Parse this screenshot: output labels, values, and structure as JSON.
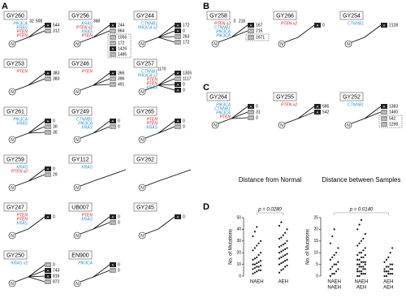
{
  "panels": [
    {
      "label": "A",
      "tiles": [
        {
          "name": "GY260",
          "notes": [
            32,
            508
          ],
          "leaves": [
            {
              "tag": "A",
              "count": 544
            },
            {
              "tag": "NA",
              "count": 312
            }
          ],
          "genes": [
            {
              "text": "PIK3CA",
              "color": "#2a8fd4"
            },
            {
              "text": "KRAS",
              "color": "#2a8fd4"
            },
            {
              "text": "PTEN",
              "color": "#e02020"
            },
            {
              "text": "PTEN",
              "color": "#e02020"
            }
          ]
        },
        {
          "name": "GY256",
          "notes": [
            368
          ],
          "leaves": [
            {
              "tag": "A",
              "count": 244
            },
            {
              "tag": "NA",
              "count": 864
            }
          ],
          "inset": [
            {
              "tag": "NA",
              "count": 1056
            },
            {
              "tag": "NA",
              "count": 172
            },
            {
              "tag": "A",
              "count": 1426
            },
            {
              "tag": "NA",
              "count": 1485
            }
          ],
          "genes": [
            {
              "text": "KRAS",
              "color": "#2a8fd4"
            },
            {
              "text": "PTEN x2",
              "color": "#e02020"
            },
            {
              "text": "KRAS",
              "color": "#2a8fd4"
            },
            {
              "text": "PTEN",
              "color": "#e02020"
            }
          ]
        },
        {
          "name": "GY244",
          "notes": [],
          "leaves": [
            {
              "tag": "A",
              "count": 172
            },
            {
              "tag": "A",
              "count": 0
            },
            {
              "tag": "NA",
              "count": 263
            },
            {
              "tag": "NA",
              "count": 172
            }
          ],
          "genes": [
            {
              "text": "CTNNB1",
              "color": "#2a8fd4"
            },
            {
              "text": "PIK3CA x2",
              "color": "#2a8fd4"
            }
          ]
        },
        {
          "name": "GY253",
          "notes": [],
          "leaves": [
            {
              "tag": "A",
              "count": 383
            },
            {
              "tag": "NA",
              "count": 383
            }
          ],
          "genes": [
            {
              "text": "PTEN",
              "color": "#e02020"
            }
          ]
        },
        {
          "name": "GY246",
          "notes": [],
          "leaves": [
            {
              "tag": "A",
              "count": 366
            },
            {
              "tag": "NA",
              "count": 396
            },
            {
              "tag": "NA",
              "count": 491
            }
          ],
          "genes": [
            {
              "text": "PTEN",
              "color": "#e02020"
            }
          ]
        },
        {
          "name": "GY257",
          "notes": [
            1170
          ],
          "leaves": [
            {
              "tag": "A",
              "count": 1305
            },
            {
              "tag": "NA",
              "count": 1117
            },
            {
              "tag": "A",
              "count": 0
            },
            {
              "tag": "A",
              "count": 0
            }
          ],
          "genes": [
            {
              "text": "CTNNB1",
              "color": "#2a8fd4"
            },
            {
              "text": "PIK3CA x2",
              "color": "#2a8fd4"
            },
            {
              "text": "PTEN",
              "color": "#e02020"
            },
            {
              "text": "PTEN",
              "color": "#e02020"
            },
            {
              "text": "KRAS",
              "color": "#2a8fd4"
            }
          ]
        },
        {
          "name": "GY261",
          "notes": [],
          "leaves": [
            {
              "tag": "A",
              "count": 0
            },
            {
              "tag": "NA",
              "count": 30
            },
            {
              "tag": "NA",
              "count": 30
            }
          ],
          "genes": [
            {
              "text": "PIK3CA",
              "color": "#2a8fd4"
            },
            {
              "text": "KRAS",
              "color": "#2a8fd4"
            }
          ]
        },
        {
          "name": "GY249",
          "notes": [],
          "leaves": [
            {
              "tag": "A",
              "count": 0
            },
            {
              "tag": "NA",
              "count": 0
            }
          ],
          "genes": [
            {
              "text": "CTNNB1",
              "color": "#2a8fd4"
            },
            {
              "text": "PIK3CA",
              "color": "#2a8fd4"
            },
            {
              "text": "KRAS",
              "color": "#2a8fd4"
            }
          ]
        },
        {
          "name": "GY265",
          "notes": [],
          "leaves": [
            {
              "tag": "A",
              "count": 0
            },
            {
              "tag": "NA",
              "count": 0
            }
          ],
          "genes": [
            {
              "text": "PTEN",
              "color": "#e02020"
            },
            {
              "text": "PTEN",
              "color": "#e02020"
            },
            {
              "text": "KRAS",
              "color": "#2a8fd4"
            }
          ]
        },
        {
          "name": "GY259",
          "notes": [],
          "leaves": [
            {
              "tag": "A",
              "count": 0
            },
            {
              "tag": "NA",
              "count": 29
            }
          ],
          "genes": [
            {
              "text": "KRAS",
              "color": "#2a8fd4"
            },
            {
              "text": "PTEN x2",
              "color": "#e02020"
            }
          ]
        },
        {
          "name": "GY112",
          "notes": [],
          "leaves": [],
          "genes": [
            {
              "text": "KRAS",
              "color": "#2a8fd4"
            }
          ]
        },
        {
          "name": "GY262",
          "notes": [],
          "leaves": [],
          "genes": []
        },
        {
          "name": "GY247",
          "notes": [],
          "leaves": [
            {
              "tag": "A",
              "count": 0
            }
          ],
          "genes": [
            {
              "text": "PTEN",
              "color": "#e02020"
            },
            {
              "text": "PTEN",
              "color": "#e02020"
            },
            {
              "text": "KRAS",
              "color": "#2a8fd4"
            }
          ]
        },
        {
          "name": "UB007",
          "notes": [],
          "leaves": [
            {
              "tag": "A",
              "count": 0
            },
            {
              "tag": "NA",
              "count": 0
            }
          ],
          "genes": [
            {
              "text": "PTEN",
              "color": "#e02020"
            },
            {
              "text": "KRAS",
              "color": "#2a8fd4"
            }
          ]
        },
        {
          "name": "GY245",
          "notes": [],
          "leaves": [
            {
              "tag": "A",
              "count": 0
            }
          ],
          "genes": []
        },
        {
          "name": "GY250",
          "notes": [],
          "leaves": [
            {
              "tag": "NA",
              "count": 0
            },
            {
              "tag": "A",
              "count": 743
            },
            {
              "tag": "A",
              "count": 816
            },
            {
              "tag": "NA",
              "count": 872
            }
          ],
          "genes": [
            {
              "text": "KRAS x2",
              "color": "#2a8fd4"
            }
          ]
        },
        {
          "name": "EN900",
          "notes": [],
          "leaves": [
            {
              "tag": "A",
              "count": 0
            },
            {
              "tag": "NA",
              "count": 0
            }
          ],
          "genes": [
            {
              "text": "PIK3CA",
              "color": "#2a8fd4"
            }
          ]
        }
      ]
    },
    {
      "label": "B",
      "tiles": [
        {
          "name": "GY258",
          "notes": [
            0,
            216
          ],
          "leaves": [
            {
              "tag": "A",
              "count": 167
            },
            {
              "tag": "NA",
              "count": 216
            }
          ],
          "inset": [
            {
              "tag": "NA",
              "count": 1671
            }
          ],
          "genes": [
            {
              "text": "PTEN x2",
              "color": "#e02020"
            },
            {
              "text": "CTNNB1",
              "color": "#2a8fd4"
            },
            {
              "text": "PIK3CA",
              "color": "#2a8fd4"
            },
            {
              "text": "PIK3CA",
              "color": "#2a8fd4"
            }
          ]
        },
        {
          "name": "GY266",
          "notes": [],
          "leaves": [
            {
              "tag": "A",
              "count": 0
            }
          ],
          "genes": [
            {
              "text": "PTEN x2",
              "color": "#e02020"
            }
          ]
        },
        {
          "name": "GY254",
          "notes": [],
          "leaves": [
            {
              "tag": "A",
              "count": 2128
            }
          ],
          "genes": [
            {
              "text": "CTNNB1",
              "color": "#2a8fd4"
            }
          ]
        }
      ]
    },
    {
      "label": "C",
      "tiles": [
        {
          "name": "GY264",
          "notes": [],
          "leaves": [
            {
              "tag": "A",
              "count": 0
            },
            {
              "tag": "NA",
              "count": 31
            },
            {
              "tag": "NA",
              "count": 0
            }
          ],
          "genes": [
            {
              "text": "PIK3CA",
              "color": "#2a8fd4"
            },
            {
              "text": "CTNNB1",
              "color": "#2a8fd4"
            },
            {
              "text": "PIK3CA",
              "color": "#2a8fd4"
            },
            {
              "text": "PTEN",
              "color": "#e02020"
            }
          ]
        },
        {
          "name": "GY255",
          "notes": [],
          "leaves": [
            {
              "tag": "A",
              "count": 585
            },
            {
              "tag": "A",
              "count": 542
            }
          ],
          "genes": [
            {
              "text": "PTEN x2",
              "color": "#e02020"
            }
          ]
        },
        {
          "name": "GY252",
          "notes": [],
          "leaves": [
            {
              "tag": "A",
              "count": 1383
            },
            {
              "tag": "NA",
              "count": 1460
            }
          ],
          "inset": [
            {
              "tag": "NA",
              "count": 542
            },
            {
              "tag": "NA",
              "count": 1298
            }
          ],
          "genes": [
            {
              "text": "CTNNB1",
              "color": "#2a8fd4"
            }
          ]
        }
      ]
    }
  ],
  "chart_label": "D",
  "chart_data": [
    {
      "type": "strip",
      "title": "Distance from Normal",
      "y_label": "No. of Mutations",
      "annotation": "p = 0.0280",
      "categories": [
        [
          "NAEH"
        ],
        [
          "AEH"
        ]
      ],
      "ylim": [
        0,
        50
      ],
      "yticks": [
        0,
        10,
        20,
        30,
        40,
        50
      ],
      "values": [
        [
          2,
          3,
          4,
          5,
          5,
          6,
          7,
          8,
          8,
          9,
          10,
          10,
          11,
          12,
          13,
          14,
          15,
          16,
          18,
          20,
          22,
          24,
          26,
          28,
          30,
          34,
          38,
          42
        ],
        [
          3,
          5,
          6,
          8,
          9,
          10,
          11,
          12,
          13,
          14,
          15,
          16,
          17,
          18,
          19,
          20,
          21,
          22,
          23,
          24,
          25,
          26,
          27,
          28,
          30,
          32,
          33,
          35,
          37,
          40,
          43,
          46
        ]
      ]
    },
    {
      "type": "strip",
      "title": "Distance between Samples",
      "y_label": "No. of Mutations",
      "annotation": "p = 0.0140",
      "categories": [
        [
          "NAEH",
          "NAEH"
        ],
        [
          "NAEH",
          "AEH"
        ],
        [
          "AEH",
          "AEH"
        ]
      ],
      "ylim": [
        0,
        25
      ],
      "yticks": [
        0,
        5,
        10,
        15,
        20,
        25
      ],
      "values": [
        [
          0,
          1,
          1,
          2,
          3,
          3,
          4,
          5,
          5,
          6,
          7,
          8,
          9,
          10,
          12,
          14,
          17,
          20
        ],
        [
          0,
          0,
          1,
          1,
          1,
          2,
          2,
          2,
          3,
          3,
          3,
          4,
          4,
          4,
          5,
          5,
          5,
          6,
          6,
          6,
          7,
          7,
          8,
          8,
          9,
          9,
          10,
          10,
          11,
          12,
          13,
          14,
          15,
          16,
          18,
          20,
          22,
          24
        ],
        [
          0,
          0,
          1,
          1,
          1,
          2,
          2,
          2,
          3,
          3,
          3,
          4,
          4,
          5,
          5,
          6,
          7,
          8,
          10,
          12
        ]
      ]
    }
  ]
}
